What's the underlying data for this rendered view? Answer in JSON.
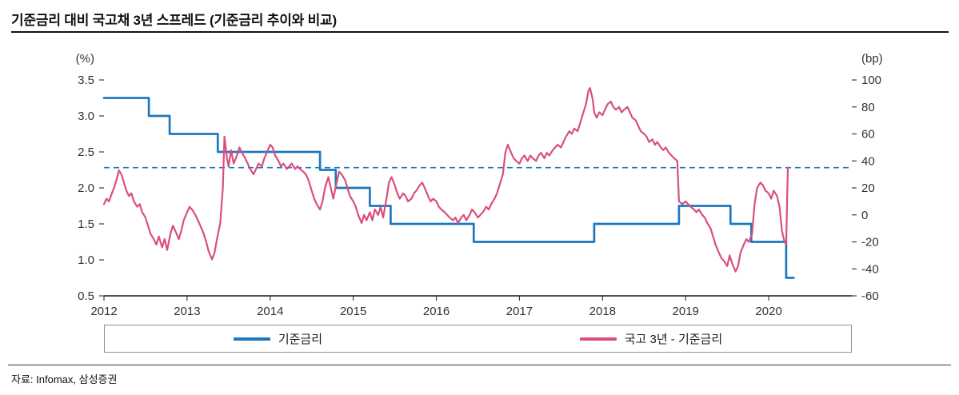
{
  "title": "기준금리 대비 국고채 3년 스프레드 (기준금리 추이와 비교)",
  "source_note": "자료: Infomax, 삼성증권",
  "legend": [
    {
      "label": "기준금리",
      "color": "#1d78be"
    },
    {
      "label": "국고 3년 - 기준금리",
      "color": "#d94f80"
    }
  ],
  "chart_data": {
    "type": "line",
    "title": "기준금리 대비 국고채 3년 스프레드 (기준금리 추이와 비교)",
    "x_range": [
      2012,
      2021
    ],
    "x_ticks": [
      2012,
      2013,
      2014,
      2015,
      2016,
      2017,
      2018,
      2019,
      2020
    ],
    "left_axis": {
      "label": "(%)",
      "range": [
        0.5,
        3.5
      ],
      "ticks": [
        3.5,
        3.0,
        2.5,
        2.0,
        1.5,
        1.0,
        0.5
      ]
    },
    "right_axis": {
      "label": "(bp)",
      "range": [
        -60,
        100
      ],
      "ticks": [
        100,
        80,
        60,
        40,
        20,
        0,
        -20,
        -40,
        -60
      ]
    },
    "reference_line": {
      "axis": "right",
      "value": 35,
      "style": "dashed",
      "color": "#1d78be"
    },
    "series": [
      {
        "name": "기준금리",
        "axis": "left",
        "unit": "%",
        "color": "#1d78be",
        "width": 2.7,
        "points": [
          [
            2012.0,
            3.25
          ],
          [
            2012.54,
            3.25
          ],
          [
            2012.54,
            3.0
          ],
          [
            2012.79,
            3.0
          ],
          [
            2012.79,
            2.75
          ],
          [
            2013.37,
            2.75
          ],
          [
            2013.37,
            2.5
          ],
          [
            2014.6,
            2.5
          ],
          [
            2014.6,
            2.25
          ],
          [
            2014.79,
            2.25
          ],
          [
            2014.79,
            2.0
          ],
          [
            2015.2,
            2.0
          ],
          [
            2015.2,
            1.75
          ],
          [
            2015.45,
            1.75
          ],
          [
            2015.45,
            1.5
          ],
          [
            2016.45,
            1.5
          ],
          [
            2016.45,
            1.25
          ],
          [
            2017.9,
            1.25
          ],
          [
            2017.9,
            1.5
          ],
          [
            2018.92,
            1.5
          ],
          [
            2018.92,
            1.75
          ],
          [
            2019.54,
            1.75
          ],
          [
            2019.54,
            1.5
          ],
          [
            2019.79,
            1.5
          ],
          [
            2019.79,
            1.25
          ],
          [
            2020.21,
            1.25
          ],
          [
            2020.21,
            0.75
          ],
          [
            2020.3,
            0.75
          ]
        ]
      },
      {
        "name": "국고 3년 - 기준금리",
        "axis": "right",
        "unit": "bp",
        "color": "#d94f80",
        "width": 2.2,
        "points": [
          [
            2012.0,
            8
          ],
          [
            2012.03,
            12
          ],
          [
            2012.06,
            10
          ],
          [
            2012.09,
            15
          ],
          [
            2012.12,
            20
          ],
          [
            2012.15,
            26
          ],
          [
            2012.18,
            33
          ],
          [
            2012.21,
            30
          ],
          [
            2012.24,
            24
          ],
          [
            2012.27,
            18
          ],
          [
            2012.3,
            14
          ],
          [
            2012.33,
            16
          ],
          [
            2012.36,
            10
          ],
          [
            2012.4,
            6
          ],
          [
            2012.43,
            8
          ],
          [
            2012.46,
            2
          ],
          [
            2012.5,
            -2
          ],
          [
            2012.53,
            -8
          ],
          [
            2012.56,
            -14
          ],
          [
            2012.6,
            -18
          ],
          [
            2012.63,
            -22
          ],
          [
            2012.66,
            -16
          ],
          [
            2012.7,
            -24
          ],
          [
            2012.73,
            -18
          ],
          [
            2012.76,
            -26
          ],
          [
            2012.8,
            -14
          ],
          [
            2012.83,
            -8
          ],
          [
            2012.86,
            -12
          ],
          [
            2012.9,
            -18
          ],
          [
            2012.93,
            -12
          ],
          [
            2012.96,
            -4
          ],
          [
            2013.0,
            2
          ],
          [
            2013.03,
            6
          ],
          [
            2013.06,
            4
          ],
          [
            2013.1,
            0
          ],
          [
            2013.13,
            -4
          ],
          [
            2013.16,
            -8
          ],
          [
            2013.2,
            -14
          ],
          [
            2013.23,
            -20
          ],
          [
            2013.26,
            -27
          ],
          [
            2013.3,
            -33
          ],
          [
            2013.33,
            -28
          ],
          [
            2013.36,
            -18
          ],
          [
            2013.4,
            -6
          ],
          [
            2013.43,
            20
          ],
          [
            2013.45,
            58
          ],
          [
            2013.48,
            42
          ],
          [
            2013.5,
            36
          ],
          [
            2013.53,
            48
          ],
          [
            2013.56,
            38
          ],
          [
            2013.6,
            44
          ],
          [
            2013.63,
            50
          ],
          [
            2013.66,
            46
          ],
          [
            2013.7,
            42
          ],
          [
            2013.73,
            38
          ],
          [
            2013.76,
            34
          ],
          [
            2013.8,
            30
          ],
          [
            2013.83,
            34
          ],
          [
            2013.86,
            38
          ],
          [
            2013.9,
            36
          ],
          [
            2013.93,
            42
          ],
          [
            2013.96,
            46
          ],
          [
            2014.0,
            52
          ],
          [
            2014.03,
            50
          ],
          [
            2014.06,
            44
          ],
          [
            2014.1,
            40
          ],
          [
            2014.13,
            36
          ],
          [
            2014.16,
            38
          ],
          [
            2014.2,
            34
          ],
          [
            2014.23,
            36
          ],
          [
            2014.26,
            38
          ],
          [
            2014.3,
            34
          ],
          [
            2014.33,
            36
          ],
          [
            2014.36,
            34
          ],
          [
            2014.4,
            32
          ],
          [
            2014.43,
            30
          ],
          [
            2014.46,
            26
          ],
          [
            2014.5,
            18
          ],
          [
            2014.53,
            12
          ],
          [
            2014.56,
            8
          ],
          [
            2014.6,
            4
          ],
          [
            2014.63,
            10
          ],
          [
            2014.66,
            20
          ],
          [
            2014.7,
            28
          ],
          [
            2014.73,
            20
          ],
          [
            2014.76,
            12
          ],
          [
            2014.8,
            24
          ],
          [
            2014.83,
            32
          ],
          [
            2014.86,
            30
          ],
          [
            2014.9,
            26
          ],
          [
            2014.93,
            20
          ],
          [
            2014.96,
            14
          ],
          [
            2015.0,
            10
          ],
          [
            2015.03,
            6
          ],
          [
            2015.06,
            0
          ],
          [
            2015.1,
            -6
          ],
          [
            2015.13,
            0
          ],
          [
            2015.16,
            -4
          ],
          [
            2015.2,
            2
          ],
          [
            2015.23,
            -4
          ],
          [
            2015.26,
            4
          ],
          [
            2015.3,
            0
          ],
          [
            2015.33,
            6
          ],
          [
            2015.36,
            -2
          ],
          [
            2015.4,
            12
          ],
          [
            2015.43,
            24
          ],
          [
            2015.46,
            28
          ],
          [
            2015.5,
            22
          ],
          [
            2015.53,
            16
          ],
          [
            2015.56,
            12
          ],
          [
            2015.6,
            16
          ],
          [
            2015.63,
            14
          ],
          [
            2015.66,
            10
          ],
          [
            2015.7,
            12
          ],
          [
            2015.73,
            16
          ],
          [
            2015.76,
            18
          ],
          [
            2015.8,
            22
          ],
          [
            2015.83,
            24
          ],
          [
            2015.86,
            20
          ],
          [
            2015.9,
            14
          ],
          [
            2015.93,
            10
          ],
          [
            2015.96,
            12
          ],
          [
            2016.0,
            10
          ],
          [
            2016.03,
            6
          ],
          [
            2016.06,
            4
          ],
          [
            2016.1,
            2
          ],
          [
            2016.13,
            0
          ],
          [
            2016.16,
            -2
          ],
          [
            2016.2,
            -4
          ],
          [
            2016.23,
            -2
          ],
          [
            2016.26,
            -6
          ],
          [
            2016.3,
            -2
          ],
          [
            2016.33,
            0
          ],
          [
            2016.36,
            -4
          ],
          [
            2016.4,
            0
          ],
          [
            2016.43,
            4
          ],
          [
            2016.46,
            2
          ],
          [
            2016.5,
            -2
          ],
          [
            2016.53,
            0
          ],
          [
            2016.56,
            2
          ],
          [
            2016.6,
            6
          ],
          [
            2016.63,
            4
          ],
          [
            2016.66,
            8
          ],
          [
            2016.7,
            12
          ],
          [
            2016.73,
            16
          ],
          [
            2016.76,
            22
          ],
          [
            2016.8,
            30
          ],
          [
            2016.83,
            46
          ],
          [
            2016.86,
            52
          ],
          [
            2016.9,
            46
          ],
          [
            2016.93,
            42
          ],
          [
            2016.96,
            40
          ],
          [
            2017.0,
            38
          ],
          [
            2017.03,
            42
          ],
          [
            2017.06,
            44
          ],
          [
            2017.1,
            40
          ],
          [
            2017.13,
            44
          ],
          [
            2017.16,
            42
          ],
          [
            2017.2,
            40
          ],
          [
            2017.23,
            44
          ],
          [
            2017.26,
            46
          ],
          [
            2017.3,
            42
          ],
          [
            2017.33,
            46
          ],
          [
            2017.36,
            44
          ],
          [
            2017.4,
            48
          ],
          [
            2017.43,
            50
          ],
          [
            2017.46,
            52
          ],
          [
            2017.5,
            50
          ],
          [
            2017.53,
            54
          ],
          [
            2017.56,
            58
          ],
          [
            2017.6,
            62
          ],
          [
            2017.63,
            60
          ],
          [
            2017.66,
            64
          ],
          [
            2017.7,
            62
          ],
          [
            2017.73,
            68
          ],
          [
            2017.76,
            74
          ],
          [
            2017.8,
            82
          ],
          [
            2017.83,
            92
          ],
          [
            2017.85,
            94
          ],
          [
            2017.88,
            86
          ],
          [
            2017.9,
            76
          ],
          [
            2017.93,
            72
          ],
          [
            2017.96,
            76
          ],
          [
            2018.0,
            74
          ],
          [
            2018.03,
            78
          ],
          [
            2018.06,
            82
          ],
          [
            2018.1,
            84
          ],
          [
            2018.13,
            80
          ],
          [
            2018.16,
            78
          ],
          [
            2018.2,
            80
          ],
          [
            2018.23,
            76
          ],
          [
            2018.26,
            78
          ],
          [
            2018.3,
            80
          ],
          [
            2018.33,
            76
          ],
          [
            2018.36,
            72
          ],
          [
            2018.4,
            70
          ],
          [
            2018.43,
            66
          ],
          [
            2018.46,
            62
          ],
          [
            2018.5,
            60
          ],
          [
            2018.53,
            58
          ],
          [
            2018.56,
            54
          ],
          [
            2018.6,
            56
          ],
          [
            2018.63,
            52
          ],
          [
            2018.66,
            54
          ],
          [
            2018.7,
            50
          ],
          [
            2018.73,
            48
          ],
          [
            2018.76,
            50
          ],
          [
            2018.8,
            46
          ],
          [
            2018.83,
            44
          ],
          [
            2018.86,
            42
          ],
          [
            2018.9,
            40
          ],
          [
            2018.92,
            10
          ],
          [
            2018.96,
            8
          ],
          [
            2019.0,
            10
          ],
          [
            2019.03,
            8
          ],
          [
            2019.06,
            6
          ],
          [
            2019.1,
            4
          ],
          [
            2019.13,
            2
          ],
          [
            2019.16,
            4
          ],
          [
            2019.2,
            0
          ],
          [
            2019.23,
            -2
          ],
          [
            2019.26,
            -6
          ],
          [
            2019.3,
            -10
          ],
          [
            2019.33,
            -16
          ],
          [
            2019.36,
            -22
          ],
          [
            2019.4,
            -28
          ],
          [
            2019.43,
            -32
          ],
          [
            2019.46,
            -34
          ],
          [
            2019.5,
            -38
          ],
          [
            2019.53,
            -30
          ],
          [
            2019.56,
            -36
          ],
          [
            2019.6,
            -42
          ],
          [
            2019.63,
            -38
          ],
          [
            2019.66,
            -28
          ],
          [
            2019.7,
            -22
          ],
          [
            2019.73,
            -18
          ],
          [
            2019.76,
            -20
          ],
          [
            2019.8,
            -14
          ],
          [
            2019.83,
            8
          ],
          [
            2019.86,
            20
          ],
          [
            2019.9,
            24
          ],
          [
            2019.93,
            22
          ],
          [
            2019.96,
            18
          ],
          [
            2020.0,
            16
          ],
          [
            2020.03,
            12
          ],
          [
            2020.06,
            18
          ],
          [
            2020.1,
            14
          ],
          [
            2020.13,
            6
          ],
          [
            2020.16,
            -12
          ],
          [
            2020.19,
            -20
          ],
          [
            2020.21,
            -22
          ],
          [
            2020.23,
            35
          ]
        ]
      }
    ]
  }
}
